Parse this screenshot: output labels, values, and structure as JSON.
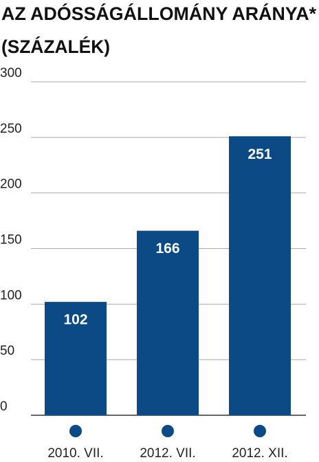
{
  "chart_data": {
    "type": "bar",
    "title": "AZ ADÓSSÁGÁLLOMÁNY ARÁNYA*",
    "subtitle": "(SZÁZALÉK)",
    "categories": [
      "2010. VII.",
      "2012. VII.",
      "2012. XII."
    ],
    "values": [
      102,
      166,
      251
    ],
    "color": "#0b4a85",
    "ylim": [
      0,
      300
    ],
    "yticks": [
      0,
      50,
      100,
      150,
      200,
      250,
      300
    ],
    "grid": true
  }
}
